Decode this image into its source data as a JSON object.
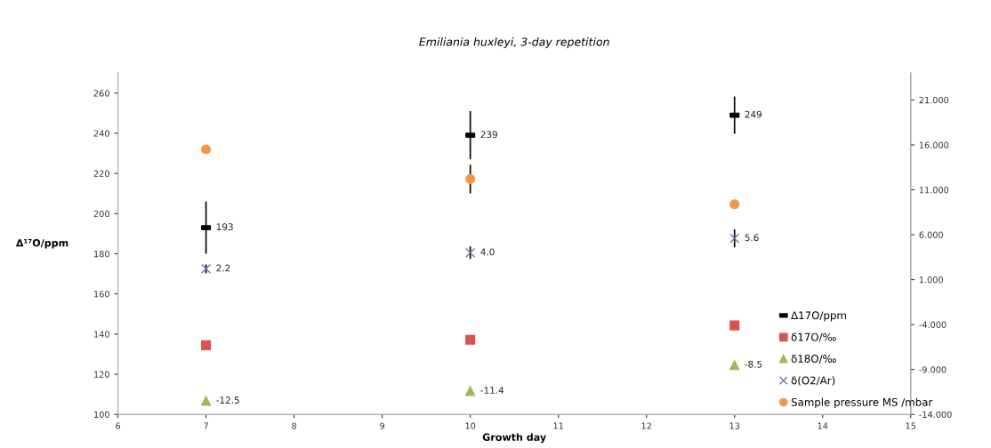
{
  "chart_data": {
    "type": "scatter",
    "title": "Emiliania huxleyi, 3-day repetition",
    "xlabel": "Growth day",
    "ylabel": "Δ¹⁷O/ppm",
    "x": [
      7,
      10,
      13
    ],
    "xlim": [
      6,
      15
    ],
    "xticks": [
      6,
      7,
      8,
      9,
      10,
      11,
      12,
      13,
      14,
      15
    ],
    "ylim": [
      100,
      270
    ],
    "yticks": [
      100,
      120,
      140,
      160,
      180,
      200,
      220,
      240,
      260
    ],
    "y2lim": [
      -14,
      24
    ],
    "y2ticks": [
      {
        "value": -14,
        "label": "-14.000"
      },
      {
        "value": -9,
        "label": "-9.000"
      },
      {
        "value": -4,
        "label": "-4.000"
      },
      {
        "value": 1,
        "label": "1.000"
      },
      {
        "value": 6,
        "label": "6.000"
      },
      {
        "value": 11,
        "label": "11.000"
      },
      {
        "value": 16,
        "label": "16.000"
      },
      {
        "value": 21,
        "label": "21.000"
      }
    ],
    "grid": false,
    "legend": "bottom right",
    "series": [
      {
        "name": "Δ17O/ppm",
        "color": "#000000",
        "marker": "square",
        "values": [
          193,
          239,
          249
        ],
        "errors": [
          13,
          12,
          9.3
        ],
        "value_labels": [
          "193",
          "239",
          "249"
        ]
      },
      {
        "name": "δ17O/‰",
        "color": "#d9534f",
        "marker": "square",
        "axis": "y2",
        "values": [
          -6.3,
          -5.7,
          -4.1
        ]
      },
      {
        "name": "δ18O/‰",
        "color": "#9bbb59",
        "marker": "triangle",
        "axis": "y2",
        "values": [
          -12.5,
          -11.4,
          -8.5
        ],
        "value_labels": [
          "-12.5",
          "-11.4",
          "-8.5"
        ]
      },
      {
        "name": "δ(O2/Ar)",
        "color": "#7f6fa8",
        "marker": "cross",
        "axis": "y2",
        "values": [
          2.2,
          4.0,
          5.6
        ],
        "errors": [
          0.5,
          0.7,
          1.0
        ],
        "value_labels": [
          "2.2",
          "4.0",
          "5.6"
        ]
      },
      {
        "name": "Sample pressure MS /mbar",
        "color": "#f79646",
        "marker": "circle",
        "axis": "y2",
        "values": [
          15.5,
          12.2,
          9.4
        ],
        "errors": [
          null,
          1.6,
          null
        ]
      }
    ]
  }
}
